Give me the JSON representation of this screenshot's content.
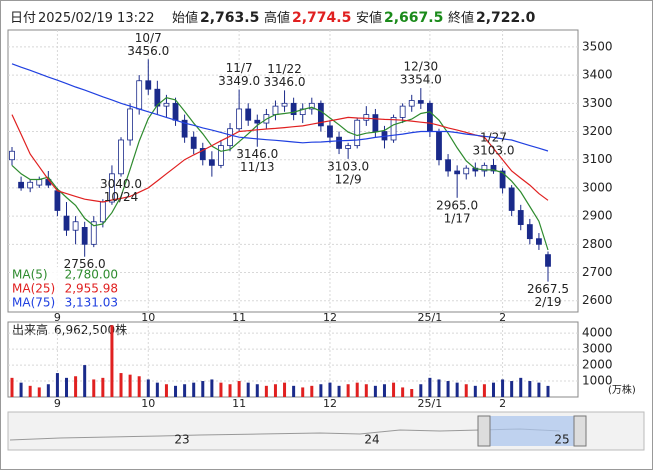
{
  "chart_data": {
    "type": "candlestick",
    "header": {
      "date_label": "日付",
      "date": "2025/02/19 13:22",
      "open_label": "始値",
      "open": {
        "value": 2763.5,
        "label": "2,763.5"
      },
      "high_label": "高値",
      "high": {
        "value": 2774.5,
        "label": "2,774.5"
      },
      "low_label": "安値",
      "low": {
        "value": 2667.5,
        "label": "2,667.5"
      },
      "close_label": "終値",
      "close": {
        "value": 2722.0,
        "label": "2,722.0"
      }
    },
    "categories": [
      null,
      null,
      null,
      null,
      null,
      "9",
      null,
      null,
      null,
      null,
      null,
      null,
      null,
      null,
      null,
      "10",
      null,
      null,
      null,
      null,
      null,
      null,
      null,
      null,
      null,
      "11",
      null,
      null,
      null,
      null,
      null,
      null,
      null,
      null,
      null,
      "12",
      null,
      null,
      null,
      null,
      null,
      null,
      null,
      null,
      null,
      null,
      "25/1",
      null,
      null,
      null,
      null,
      null,
      null,
      null,
      "2",
      null,
      null,
      null,
      null,
      null
    ],
    "candles": [
      [
        3100,
        3145,
        3080,
        3130
      ],
      [
        3020,
        3040,
        2990,
        3000
      ],
      [
        3000,
        3030,
        2985,
        3020
      ],
      [
        3010,
        3040,
        3000,
        3030
      ],
      [
        3030,
        3060,
        3000,
        3010
      ],
      [
        2990,
        3000,
        2900,
        2920
      ],
      [
        2900,
        2950,
        2830,
        2850
      ],
      [
        2850,
        2900,
        2800,
        2880
      ],
      [
        2860,
        2880,
        2756,
        2800
      ],
      [
        2800,
        2900,
        2790,
        2880
      ],
      [
        2880,
        2960,
        2860,
        2950
      ],
      [
        2950,
        3080,
        2940,
        3050
      ],
      [
        3050,
        3180,
        3040,
        3170
      ],
      [
        3170,
        3300,
        3150,
        3280
      ],
      [
        3280,
        3400,
        3260,
        3380
      ],
      [
        3380,
        3456,
        3330,
        3350
      ],
      [
        3350,
        3380,
        3260,
        3290
      ],
      [
        3290,
        3330,
        3250,
        3300
      ],
      [
        3300,
        3320,
        3220,
        3240
      ],
      [
        3240,
        3260,
        3160,
        3180
      ],
      [
        3180,
        3200,
        3120,
        3140
      ],
      [
        3140,
        3160,
        3080,
        3100
      ],
      [
        3100,
        3130,
        3040,
        3080
      ],
      [
        3080,
        3170,
        3070,
        3150
      ],
      [
        3150,
        3230,
        3130,
        3210
      ],
      [
        3210,
        3349,
        3200,
        3280
      ],
      [
        3280,
        3300,
        3220,
        3240
      ],
      [
        3240,
        3260,
        3146,
        3230
      ],
      [
        3230,
        3280,
        3210,
        3260
      ],
      [
        3260,
        3310,
        3240,
        3290
      ],
      [
        3290,
        3346,
        3270,
        3300
      ],
      [
        3300,
        3320,
        3240,
        3260
      ],
      [
        3260,
        3300,
        3230,
        3280
      ],
      [
        3280,
        3320,
        3260,
        3300
      ],
      [
        3300,
        3310,
        3200,
        3220
      ],
      [
        3220,
        3240,
        3160,
        3180
      ],
      [
        3180,
        3200,
        3120,
        3140
      ],
      [
        3140,
        3160,
        3103,
        3150
      ],
      [
        3150,
        3250,
        3140,
        3240
      ],
      [
        3240,
        3290,
        3220,
        3260
      ],
      [
        3260,
        3280,
        3180,
        3200
      ],
      [
        3200,
        3220,
        3140,
        3170
      ],
      [
        3170,
        3260,
        3160,
        3250
      ],
      [
        3250,
        3300,
        3230,
        3290
      ],
      [
        3290,
        3330,
        3270,
        3310
      ],
      [
        3310,
        3354,
        3280,
        3300
      ],
      [
        3300,
        3310,
        3180,
        3200
      ],
      [
        3200,
        3210,
        3080,
        3100
      ],
      [
        3100,
        3120,
        3040,
        3060
      ],
      [
        3060,
        3080,
        2965,
        3050
      ],
      [
        3050,
        3080,
        3030,
        3070
      ],
      [
        3070,
        3090,
        3040,
        3060
      ],
      [
        3060,
        3090,
        3040,
        3080
      ],
      [
        3080,
        3103,
        3050,
        3060
      ],
      [
        3060,
        3070,
        2980,
        3000
      ],
      [
        3000,
        3010,
        2900,
        2920
      ],
      [
        2920,
        2940,
        2850,
        2870
      ],
      [
        2870,
        2890,
        2800,
        2820
      ],
      [
        2820,
        2840,
        2780,
        2800
      ],
      [
        2763.5,
        2774.5,
        2667.5,
        2722.0
      ]
    ],
    "up_color": "#ffffff",
    "down_color": "#1a2a8a",
    "series": [
      {
        "name": "MA(5)",
        "color": "#2e8b2e",
        "last_value_label": "2,780.00",
        "values": [
          3080,
          3050,
          3030,
          3030,
          3038,
          2996,
          2966,
          2938,
          2892,
          2866,
          2872,
          2912,
          2970,
          3066,
          3166,
          3246,
          3294,
          3320,
          3312,
          3272,
          3230,
          3192,
          3148,
          3130,
          3136,
          3164,
          3192,
          3222,
          3244,
          3260,
          3264,
          3268,
          3278,
          3286,
          3272,
          3248,
          3224,
          3198,
          3186,
          3194,
          3198,
          3204,
          3224,
          3234,
          3244,
          3264,
          3270,
          3240,
          3194,
          3142,
          3096,
          3068,
          3064,
          3064,
          3054,
          3024,
          2986,
          2934,
          2882,
          2780
        ]
      },
      {
        "name": "MA(25)",
        "color": "#e02020",
        "last_value_label": "2,955.98",
        "values": [
          3260,
          3190,
          3120,
          3075,
          3030,
          2990,
          2980,
          2970,
          2960,
          2955,
          2950,
          2957,
          2963,
          2970,
          2985,
          3000,
          3025,
          3050,
          3075,
          3100,
          3117,
          3133,
          3150,
          3167,
          3183,
          3200,
          3203,
          3206,
          3209,
          3211,
          3214,
          3217,
          3220,
          3226,
          3232,
          3238,
          3244,
          3250,
          3248,
          3247,
          3245,
          3243,
          3242,
          3240,
          3237,
          3233,
          3230,
          3222,
          3213,
          3205,
          3197,
          3188,
          3180,
          3140,
          3100,
          3060,
          3035,
          3010,
          2980,
          2955.98
        ]
      },
      {
        "name": "MA(75)",
        "color": "#2040e0",
        "last_value_label": "3,131.03",
        "values": [
          3440,
          3428,
          3417,
          3405,
          3393,
          3382,
          3370,
          3358,
          3347,
          3335,
          3323,
          3312,
          3300,
          3290,
          3280,
          3270,
          3260,
          3250,
          3240,
          3230,
          3222,
          3213,
          3205,
          3197,
          3188,
          3180,
          3177,
          3174,
          3171,
          3169,
          3166,
          3163,
          3160,
          3162,
          3163,
          3165,
          3167,
          3168,
          3170,
          3174,
          3179,
          3183,
          3187,
          3191,
          3196,
          3200,
          3200,
          3200,
          3200,
          3196,
          3191,
          3187,
          3183,
          3179,
          3174,
          3170,
          3160,
          3150,
          3141,
          3131.03
        ]
      }
    ],
    "ylim": [
      2560,
      3560
    ],
    "yticks": [
      2600,
      2700,
      2800,
      2900,
      3000,
      3100,
      3200,
      3300,
      3400,
      3500
    ],
    "annotations": [
      {
        "date": "10/7",
        "value": 3456,
        "label": "3456.0",
        "position": "above"
      },
      {
        "date": "11/7",
        "value": 3349,
        "label": "3349.0",
        "position": "above"
      },
      {
        "date": "11/22",
        "value": 3346,
        "label": "3346.0",
        "position": "above"
      },
      {
        "date": "12/30",
        "value": 3354,
        "label": "3354.0",
        "position": "above"
      },
      {
        "date": "1/27",
        "value": 3103,
        "label": "3103.0",
        "position": "above"
      },
      {
        "date": "11/13",
        "value": 3146,
        "label": "3146.0",
        "position": "below"
      },
      {
        "date": "10/24",
        "value": 3040,
        "label": "3040.0",
        "position": "below"
      },
      {
        "date": "12/9",
        "value": 3103,
        "label": "3103.0",
        "position": "below"
      },
      {
        "date": "1/17",
        "value": 2965,
        "label": "2965.0",
        "position": "below"
      },
      {
        "value": 2756,
        "label": "2756.0",
        "position": "below"
      },
      {
        "date": "2/19",
        "value": 2667.5,
        "label": "2667.5",
        "position": "below"
      }
    ],
    "volume": {
      "title": "出来高",
      "last_label": "6,962,500株",
      "unit": "(万株)",
      "up_color": "#e02020",
      "down_color": "#1a2a8a",
      "values": [
        1200,
        900,
        700,
        600,
        800,
        1500,
        1200,
        1300,
        2000,
        1100,
        1200,
        4500,
        1500,
        1400,
        1300,
        1100,
        900,
        800,
        700,
        800,
        900,
        1000,
        1100,
        900,
        800,
        1000,
        900,
        800,
        700,
        800,
        900,
        700,
        600,
        700,
        800,
        900,
        700,
        800,
        900,
        800,
        700,
        800,
        900,
        600,
        500,
        800,
        1200,
        1100,
        1000,
        900,
        800,
        700,
        800,
        900,
        1100,
        1000,
        1200,
        1000,
        900,
        696.25
      ],
      "ylim": [
        0,
        4700
      ],
      "yticks": [
        1000,
        2000,
        3000,
        4000
      ]
    },
    "navigator": {
      "labels": [
        "23",
        "24",
        "25"
      ]
    }
  }
}
